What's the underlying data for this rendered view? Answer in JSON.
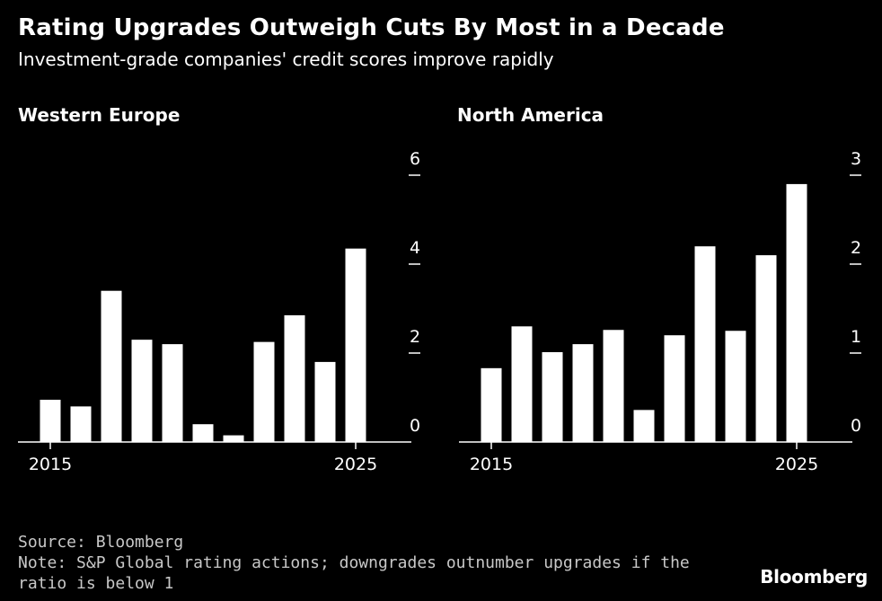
{
  "title": "Rating Upgrades Outweigh Cuts By Most in a Decade",
  "subtitle": "Investment-grade companies' credit scores improve rapidly",
  "chart_data": [
    {
      "type": "bar",
      "title": "Western Europe",
      "x": [
        2015,
        2016,
        2017,
        2018,
        2019,
        2020,
        2021,
        2022,
        2023,
        2024,
        2025
      ],
      "values": [
        0.95,
        0.8,
        3.4,
        2.3,
        2.2,
        0.4,
        0.15,
        2.25,
        2.85,
        1.8,
        4.35
      ],
      "ylim": [
        0,
        6.5
      ],
      "yticks": [
        0,
        2,
        4,
        6
      ],
      "xtick_labels": [
        "2015",
        "2025"
      ],
      "grid": false,
      "color": "#ffffff"
    },
    {
      "type": "bar",
      "title": "North America",
      "x": [
        2015,
        2016,
        2017,
        2018,
        2019,
        2020,
        2021,
        2022,
        2023,
        2024,
        2025
      ],
      "values": [
        0.83,
        1.3,
        1.01,
        1.1,
        1.26,
        0.36,
        1.2,
        2.2,
        1.25,
        2.1,
        2.9
      ],
      "ylim": [
        0,
        3.25
      ],
      "yticks": [
        0,
        1,
        2,
        3
      ],
      "xtick_labels": [
        "2015",
        "2025"
      ],
      "grid": false,
      "color": "#ffffff"
    }
  ],
  "footer": {
    "source": "Source: Bloomberg",
    "note_line1": "Note: S&P Global rating actions; downgrades outnumber upgrades if the",
    "note_line2": "ratio is below 1"
  },
  "logo": "Bloomberg"
}
